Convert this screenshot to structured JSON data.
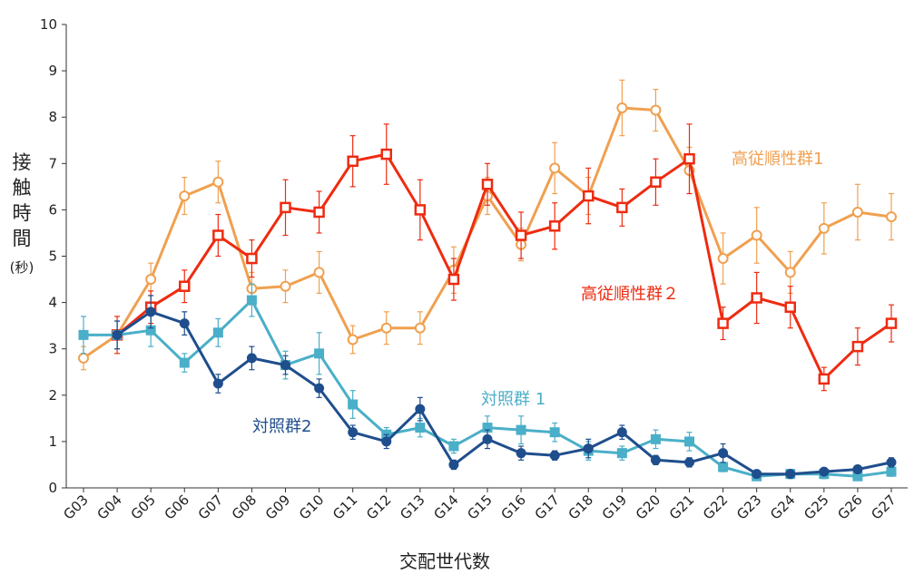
{
  "chart_data": {
    "type": "line",
    "xlabel": "交配世代数",
    "ylabel": [
      "接",
      "触",
      "時",
      "間"
    ],
    "ylabel_unit": "(秒)",
    "ylim": [
      0,
      10
    ],
    "yticks": [
      "0",
      "1",
      "2",
      "3",
      "4",
      "5",
      "6",
      "7",
      "8",
      "9",
      "10"
    ],
    "grid": false,
    "categories": [
      "G03",
      "G04",
      "G05",
      "G06",
      "G07",
      "G08",
      "G09",
      "G10",
      "G11",
      "G12",
      "G13",
      "G14",
      "G15",
      "G16",
      "G17",
      "G18",
      "G19",
      "G20",
      "G21",
      "G22",
      "G23",
      "G24",
      "G25",
      "G26",
      "G27"
    ],
    "series": [
      {
        "name": "高従順性群1",
        "color": "#F0A050",
        "marker": "circle-open",
        "values": [
          2.8,
          3.3,
          4.5,
          6.3,
          6.6,
          4.3,
          4.35,
          4.65,
          3.2,
          3.45,
          3.45,
          4.7,
          6.3,
          5.25,
          6.9,
          6.3,
          8.2,
          8.15,
          6.85,
          4.95,
          5.45,
          4.65,
          5.6,
          5.95,
          5.85
        ],
        "errors": [
          0.25,
          0.3,
          0.35,
          0.4,
          0.45,
          0.35,
          0.35,
          0.45,
          0.3,
          0.35,
          0.35,
          0.5,
          0.4,
          0.35,
          0.55,
          0.4,
          0.6,
          0.45,
          0.5,
          0.55,
          0.6,
          0.45,
          0.55,
          0.6,
          0.5
        ]
      },
      {
        "name": "高従順性群２",
        "color": "#EE2B10",
        "marker": "square-open",
        "values": [
          null,
          3.3,
          3.9,
          4.35,
          5.45,
          4.95,
          6.05,
          5.95,
          7.05,
          7.2,
          6.0,
          4.5,
          6.55,
          5.45,
          5.65,
          6.3,
          6.05,
          6.6,
          7.1,
          3.55,
          4.1,
          3.9,
          2.35,
          3.05,
          3.55
        ],
        "errors": [
          null,
          0.4,
          0.35,
          0.35,
          0.45,
          0.4,
          0.6,
          0.45,
          0.55,
          0.65,
          0.65,
          0.45,
          0.45,
          0.5,
          0.5,
          0.6,
          0.4,
          0.5,
          0.75,
          0.35,
          0.55,
          0.45,
          0.25,
          0.4,
          0.4
        ]
      },
      {
        "name": "対照群 1",
        "color": "#4AAFC8",
        "marker": "square-filled",
        "values": [
          3.3,
          3.3,
          3.4,
          2.7,
          3.35,
          4.05,
          2.65,
          2.9,
          1.8,
          1.15,
          1.3,
          0.9,
          1.3,
          1.25,
          1.2,
          0.8,
          0.75,
          1.05,
          1.0,
          0.45,
          0.25,
          0.3,
          0.3,
          0.25,
          0.35
        ],
        "errors": [
          0.4,
          0.3,
          0.35,
          0.2,
          0.3,
          0.35,
          0.3,
          0.45,
          0.3,
          0.15,
          0.2,
          0.15,
          0.25,
          0.3,
          0.2,
          0.2,
          0.15,
          0.2,
          0.2,
          0.1,
          0.05,
          0.1,
          0.1,
          0.05,
          0.1
        ]
      },
      {
        "name": "対照群2",
        "color": "#1F4E8C",
        "marker": "circle-filled",
        "values": [
          null,
          3.3,
          3.8,
          3.55,
          2.25,
          2.8,
          2.65,
          2.15,
          1.2,
          1.0,
          1.7,
          0.5,
          1.05,
          0.75,
          0.7,
          0.85,
          1.2,
          0.6,
          0.55,
          0.75,
          0.3,
          0.3,
          0.35,
          0.4,
          0.55
        ],
        "errors": [
          null,
          0.3,
          0.35,
          0.25,
          0.2,
          0.25,
          0.2,
          0.2,
          0.15,
          0.15,
          0.25,
          0.1,
          0.2,
          0.15,
          0.1,
          0.2,
          0.15,
          0.1,
          0.1,
          0.2,
          0.05,
          0.05,
          0.05,
          0.05,
          0.1
        ]
      }
    ]
  }
}
